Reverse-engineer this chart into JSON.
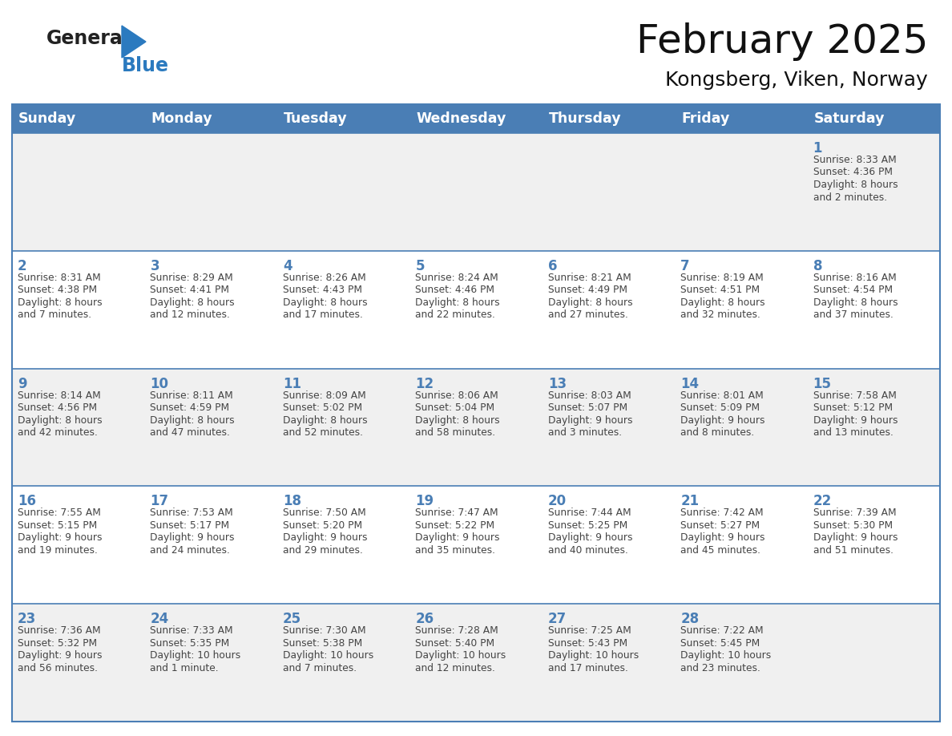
{
  "title": "February 2025",
  "subtitle": "Kongsberg, Viken, Norway",
  "header_color": "#4a7eb5",
  "header_text_color": "#ffffff",
  "day_names": [
    "Sunday",
    "Monday",
    "Tuesday",
    "Wednesday",
    "Thursday",
    "Friday",
    "Saturday"
  ],
  "bg_color": "#ffffff",
  "cell_bg_even": "#ffffff",
  "cell_bg_odd": "#f0f0f0",
  "cell_border_color": "#4a7eb5",
  "day_num_color": "#4a7eb5",
  "text_color": "#444444",
  "logo_general_color": "#222222",
  "logo_blue_color": "#2b7abf",
  "calendar": [
    [
      null,
      null,
      null,
      null,
      null,
      null,
      1
    ],
    [
      2,
      3,
      4,
      5,
      6,
      7,
      8
    ],
    [
      9,
      10,
      11,
      12,
      13,
      14,
      15
    ],
    [
      16,
      17,
      18,
      19,
      20,
      21,
      22
    ],
    [
      23,
      24,
      25,
      26,
      27,
      28,
      null
    ]
  ],
  "day_data": {
    "1": {
      "sunrise": "8:33 AM",
      "sunset": "4:36 PM",
      "daylight_line1": "8 hours",
      "daylight_line2": "and 2 minutes."
    },
    "2": {
      "sunrise": "8:31 AM",
      "sunset": "4:38 PM",
      "daylight_line1": "8 hours",
      "daylight_line2": "and 7 minutes."
    },
    "3": {
      "sunrise": "8:29 AM",
      "sunset": "4:41 PM",
      "daylight_line1": "8 hours",
      "daylight_line2": "and 12 minutes."
    },
    "4": {
      "sunrise": "8:26 AM",
      "sunset": "4:43 PM",
      "daylight_line1": "8 hours",
      "daylight_line2": "and 17 minutes."
    },
    "5": {
      "sunrise": "8:24 AM",
      "sunset": "4:46 PM",
      "daylight_line1": "8 hours",
      "daylight_line2": "and 22 minutes."
    },
    "6": {
      "sunrise": "8:21 AM",
      "sunset": "4:49 PM",
      "daylight_line1": "8 hours",
      "daylight_line2": "and 27 minutes."
    },
    "7": {
      "sunrise": "8:19 AM",
      "sunset": "4:51 PM",
      "daylight_line1": "8 hours",
      "daylight_line2": "and 32 minutes."
    },
    "8": {
      "sunrise": "8:16 AM",
      "sunset": "4:54 PM",
      "daylight_line1": "8 hours",
      "daylight_line2": "and 37 minutes."
    },
    "9": {
      "sunrise": "8:14 AM",
      "sunset": "4:56 PM",
      "daylight_line1": "8 hours",
      "daylight_line2": "and 42 minutes."
    },
    "10": {
      "sunrise": "8:11 AM",
      "sunset": "4:59 PM",
      "daylight_line1": "8 hours",
      "daylight_line2": "and 47 minutes."
    },
    "11": {
      "sunrise": "8:09 AM",
      "sunset": "5:02 PM",
      "daylight_line1": "8 hours",
      "daylight_line2": "and 52 minutes."
    },
    "12": {
      "sunrise": "8:06 AM",
      "sunset": "5:04 PM",
      "daylight_line1": "8 hours",
      "daylight_line2": "and 58 minutes."
    },
    "13": {
      "sunrise": "8:03 AM",
      "sunset": "5:07 PM",
      "daylight_line1": "9 hours",
      "daylight_line2": "and 3 minutes."
    },
    "14": {
      "sunrise": "8:01 AM",
      "sunset": "5:09 PM",
      "daylight_line1": "9 hours",
      "daylight_line2": "and 8 minutes."
    },
    "15": {
      "sunrise": "7:58 AM",
      "sunset": "5:12 PM",
      "daylight_line1": "9 hours",
      "daylight_line2": "and 13 minutes."
    },
    "16": {
      "sunrise": "7:55 AM",
      "sunset": "5:15 PM",
      "daylight_line1": "9 hours",
      "daylight_line2": "and 19 minutes."
    },
    "17": {
      "sunrise": "7:53 AM",
      "sunset": "5:17 PM",
      "daylight_line1": "9 hours",
      "daylight_line2": "and 24 minutes."
    },
    "18": {
      "sunrise": "7:50 AM",
      "sunset": "5:20 PM",
      "daylight_line1": "9 hours",
      "daylight_line2": "and 29 minutes."
    },
    "19": {
      "sunrise": "7:47 AM",
      "sunset": "5:22 PM",
      "daylight_line1": "9 hours",
      "daylight_line2": "and 35 minutes."
    },
    "20": {
      "sunrise": "7:44 AM",
      "sunset": "5:25 PM",
      "daylight_line1": "9 hours",
      "daylight_line2": "and 40 minutes."
    },
    "21": {
      "sunrise": "7:42 AM",
      "sunset": "5:27 PM",
      "daylight_line1": "9 hours",
      "daylight_line2": "and 45 minutes."
    },
    "22": {
      "sunrise": "7:39 AM",
      "sunset": "5:30 PM",
      "daylight_line1": "9 hours",
      "daylight_line2": "and 51 minutes."
    },
    "23": {
      "sunrise": "7:36 AM",
      "sunset": "5:32 PM",
      "daylight_line1": "9 hours",
      "daylight_line2": "and 56 minutes."
    },
    "24": {
      "sunrise": "7:33 AM",
      "sunset": "5:35 PM",
      "daylight_line1": "10 hours",
      "daylight_line2": "and 1 minute."
    },
    "25": {
      "sunrise": "7:30 AM",
      "sunset": "5:38 PM",
      "daylight_line1": "10 hours",
      "daylight_line2": "and 7 minutes."
    },
    "26": {
      "sunrise": "7:28 AM",
      "sunset": "5:40 PM",
      "daylight_line1": "10 hours",
      "daylight_line2": "and 12 minutes."
    },
    "27": {
      "sunrise": "7:25 AM",
      "sunset": "5:43 PM",
      "daylight_line1": "10 hours",
      "daylight_line2": "and 17 minutes."
    },
    "28": {
      "sunrise": "7:22 AM",
      "sunset": "5:45 PM",
      "daylight_line1": "10 hours",
      "daylight_line2": "and 23 minutes."
    }
  }
}
